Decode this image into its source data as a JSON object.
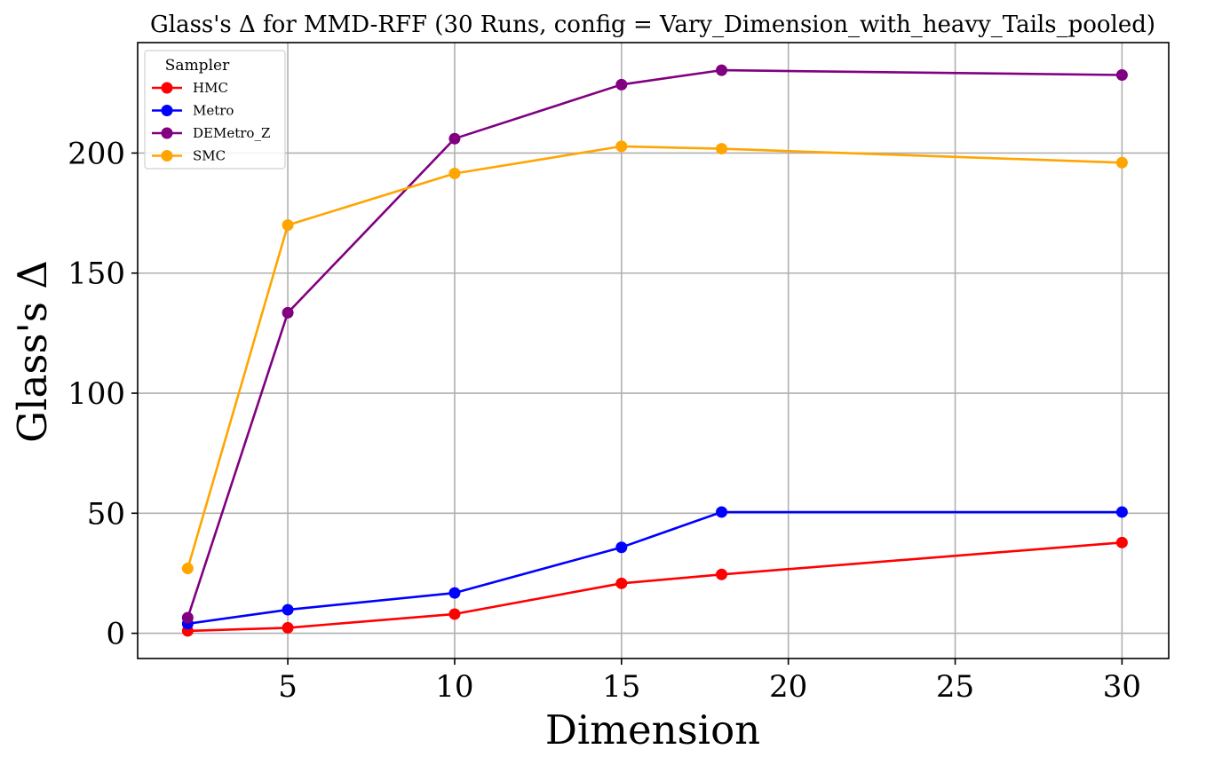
{
  "chart_data": {
    "type": "line",
    "title": "Glass's Δ for MMD-RFF (30 Runs, config = Vary_Dimension_with_heavy_Tails_pooled)",
    "xlabel": "Dimension",
    "ylabel": "Glass's Δ",
    "x": [
      2,
      5,
      10,
      15,
      18,
      30
    ],
    "xlim": [
      0.5,
      31.4
    ],
    "ylim": [
      -10.5,
      246
    ],
    "xticks": [
      5,
      10,
      15,
      20,
      25,
      30
    ],
    "yticks": [
      0,
      50,
      100,
      150,
      200
    ],
    "xtick_labels": [
      "5",
      "10",
      "15",
      "20",
      "25",
      "30"
    ],
    "ytick_labels": [
      "0",
      "50",
      "100",
      "150",
      "200"
    ],
    "grid": true,
    "legend": {
      "title": "Sampler",
      "position": "top-left"
    },
    "series": [
      {
        "name": "HMC",
        "color": "#ff0000",
        "values": [
          1,
          2.3,
          8,
          20.8,
          24.5,
          37.8
        ]
      },
      {
        "name": "Metro",
        "color": "#0000ff",
        "values": [
          4,
          9.8,
          16.8,
          35.8,
          50.5,
          50.5
        ]
      },
      {
        "name": "DEMetro_Z",
        "color": "#800080",
        "values": [
          6.5,
          133.5,
          206,
          228.5,
          234.5,
          232.5
        ]
      },
      {
        "name": "SMC",
        "color": "#ffa500",
        "values": [
          27,
          170,
          191.5,
          202.8,
          201.8,
          196
        ]
      }
    ]
  }
}
